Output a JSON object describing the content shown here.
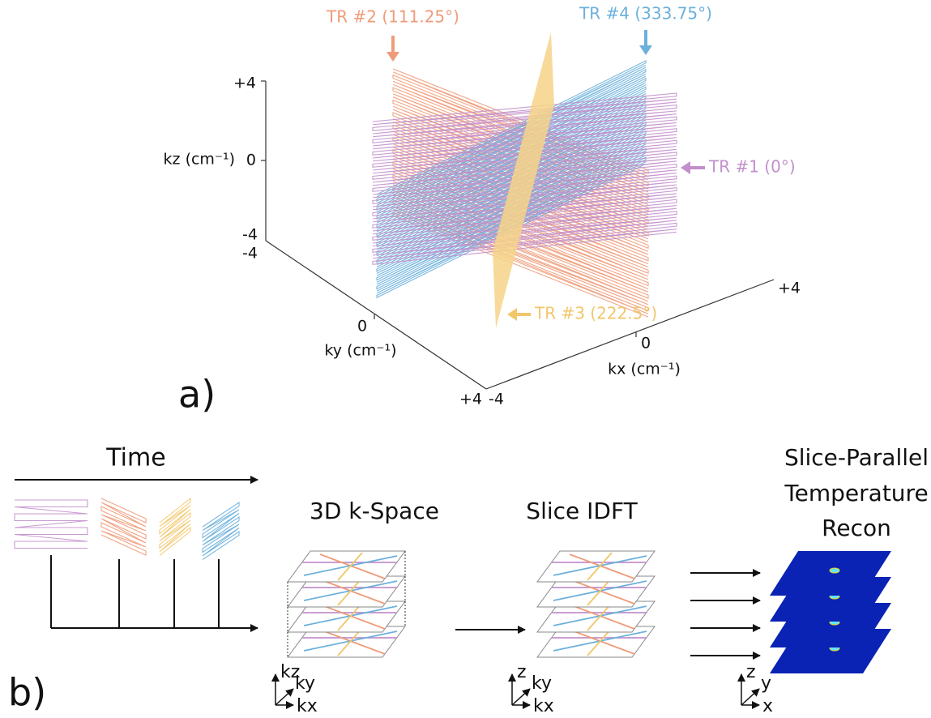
{
  "panel_a": {
    "label": "a)",
    "tr_labels": [
      "TR #2 (111.25°)",
      "TR #4 (333.75°)",
      "TR #1 (0°)",
      "TR #3 (222.5°)"
    ],
    "kz_axis": {
      "label": "kz (cm⁻¹)",
      "ticks": [
        "+4",
        "0",
        "-4"
      ]
    },
    "ky_axis": {
      "label": "ky (cm⁻¹)",
      "ticks": [
        "-4",
        "0",
        "+4"
      ]
    },
    "kx_axis": {
      "label": "kx (cm⁻¹)",
      "ticks": [
        "-4",
        "0",
        "+4"
      ]
    }
  },
  "panel_b": {
    "label": "b)",
    "time_label": "Time",
    "steps": [
      "3D k-Space",
      "Slice IDFT"
    ],
    "recon_title": [
      "Slice-Parallel",
      "Temperature",
      "Recon"
    ],
    "axes_labels": [
      [
        "kz",
        "ky",
        "kx"
      ],
      [
        "z",
        "ky",
        "kx"
      ],
      [
        "z",
        "y",
        "x"
      ]
    ]
  }
}
